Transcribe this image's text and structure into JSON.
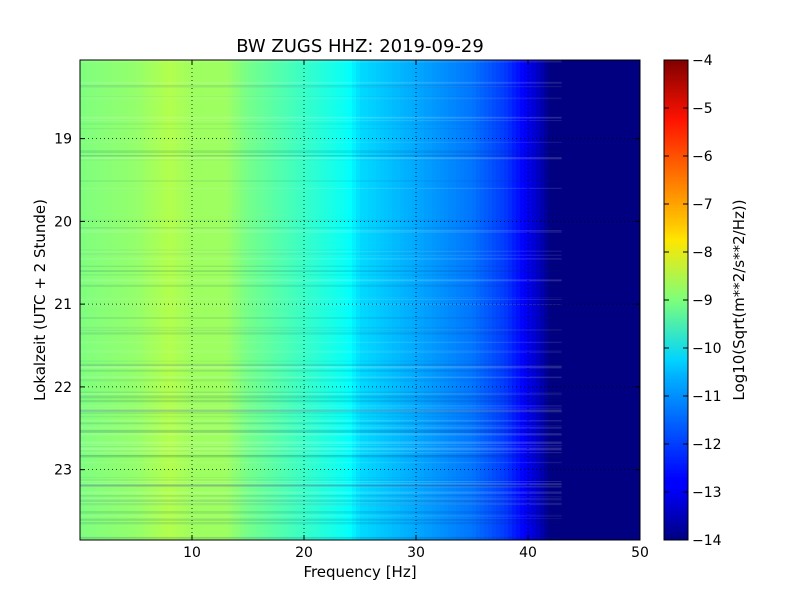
{
  "chart_data": {
    "type": "heatmap",
    "title": "BW ZUGS HHZ: 2019-09-29",
    "xlabel": "Frequency [Hz]",
    "ylabel": "Lokalzeit (UTC + 2 Stunde)",
    "xlim": [
      0,
      50
    ],
    "ylim": [
      18.05,
      23.85
    ],
    "x_ticks": [
      10,
      20,
      30,
      40,
      50
    ],
    "y_ticks": [
      19,
      20,
      21,
      22,
      23
    ],
    "y_inverted": true,
    "grid": true,
    "colormap": "jet",
    "colorbar": {
      "label": "Log10(Sqrt(m**2/s**2/Hz))",
      "range": [
        -14,
        -4
      ],
      "ticks": [
        -4,
        -5,
        -6,
        -7,
        -8,
        -9,
        -10,
        -11,
        -12,
        -13,
        -14
      ]
    },
    "frequency_profile": {
      "x": [
        0,
        5,
        8,
        10,
        13,
        15,
        20,
        24,
        25,
        30,
        35,
        38,
        40,
        41,
        42,
        43,
        50
      ],
      "values": [
        -9.0,
        -8.8,
        -8.5,
        -8.7,
        -8.7,
        -9.1,
        -9.7,
        -10.2,
        -10.6,
        -11.1,
        -11.6,
        -12.2,
        -12.9,
        -13.4,
        -14.0,
        -14.0,
        -14.0
      ]
    }
  }
}
